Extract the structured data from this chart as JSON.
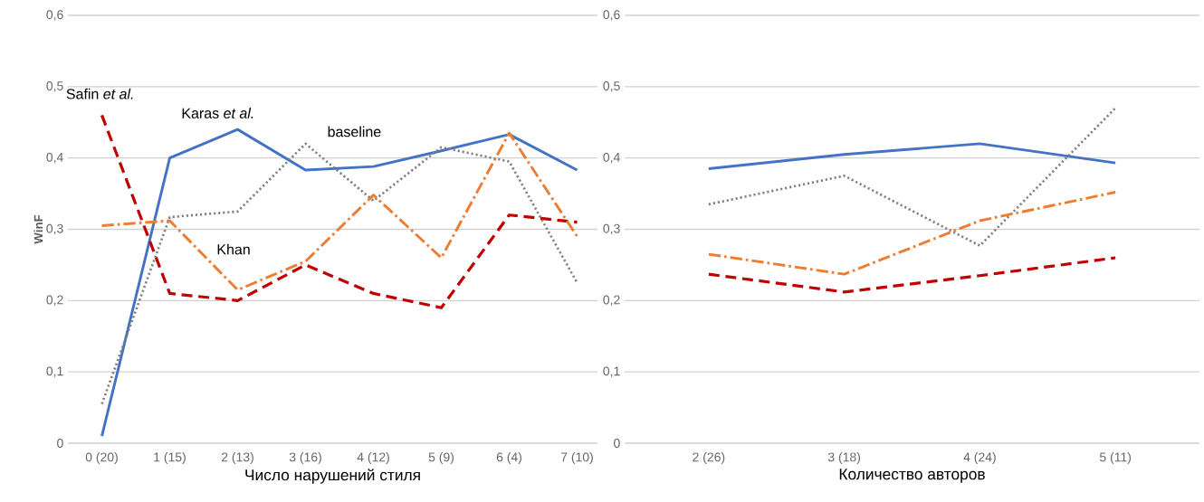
{
  "chart_data": [
    {
      "type": "line",
      "xlabel": "Число нарушений стиля",
      "ylabel": "WinF",
      "grid": "y",
      "categories": [
        "0 (20)",
        "1 (15)",
        "2 (13)",
        "3 (16)",
        "4 (12)",
        "5 (9)",
        "6 (4)",
        "7 (10)"
      ],
      "ylim": [
        0,
        0.6
      ],
      "yticks": [
        {
          "value": 0,
          "label": "0"
        },
        {
          "value": 0.1,
          "label": "0,1"
        },
        {
          "value": 0.2,
          "label": "0,2"
        },
        {
          "value": 0.3,
          "label": "0,3"
        },
        {
          "value": 0.4,
          "label": "0,4"
        },
        {
          "value": 0.5,
          "label": "0,5"
        },
        {
          "value": 0.6,
          "label": "0,6"
        }
      ],
      "series": [
        {
          "name": "Karas *et al.*",
          "color": "#4472c4",
          "line_style": "solid",
          "values": [
            0.01,
            0.4,
            0.44,
            0.383,
            0.388,
            0.41,
            0.433,
            0.383
          ]
        },
        {
          "name": "Safin *et al.*",
          "color": "#c00000",
          "line_style": "dashed",
          "values": [
            0.46,
            0.21,
            0.2,
            0.25,
            0.21,
            0.19,
            0.32,
            0.31
          ]
        },
        {
          "name": "baseline",
          "color": "#7f7f7f",
          "line_style": "dotted",
          "values": [
            0.055,
            0.317,
            0.325,
            0.42,
            0.34,
            0.415,
            0.395,
            0.225
          ]
        },
        {
          "name": "Khan",
          "color": "#ed7d31",
          "line_style": "dashdot",
          "values": [
            0.305,
            0.312,
            0.215,
            0.255,
            0.348,
            0.26,
            0.435,
            0.29
          ]
        }
      ]
    },
    {
      "type": "line",
      "xlabel": "Количество авторов",
      "grid": "y",
      "categories": [
        "2 (26)",
        "3 (18)",
        "4 (24)",
        "5 (11)"
      ],
      "ylim": [
        0,
        0.6
      ],
      "yticks": [
        {
          "value": 0,
          "label": "0"
        },
        {
          "value": 0.1,
          "label": "0,1"
        },
        {
          "value": 0.2,
          "label": "0,2"
        },
        {
          "value": 0.3,
          "label": "0,3"
        },
        {
          "value": 0.4,
          "label": "0,4"
        },
        {
          "value": 0.5,
          "label": "0,5"
        },
        {
          "value": 0.6,
          "label": "0,6"
        }
      ],
      "series": [
        {
          "color": "#4472c4",
          "line_style": "solid",
          "values": [
            0.385,
            0.405,
            0.42,
            0.393
          ]
        },
        {
          "color": "#c00000",
          "line_style": "dashed",
          "values": [
            0.237,
            0.212,
            0.235,
            0.26
          ]
        },
        {
          "color": "#7f7f7f",
          "line_style": "dotted",
          "values": [
            0.335,
            0.375,
            0.277,
            0.47
          ]
        },
        {
          "color": "#ed7d31",
          "line_style": "dashdot",
          "values": [
            0.265,
            0.237,
            0.312,
            0.352
          ]
        }
      ]
    }
  ]
}
